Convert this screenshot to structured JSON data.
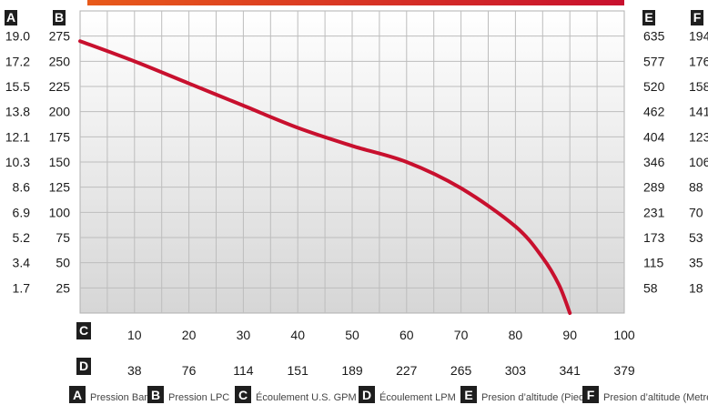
{
  "chart_data": {
    "type": "line",
    "series": [
      {
        "points": [
          [
            0,
            270
          ],
          [
            10,
            250
          ],
          [
            20,
            228
          ],
          [
            30,
            206
          ],
          [
            40,
            184
          ],
          [
            50,
            166
          ],
          [
            60,
            150
          ],
          [
            70,
            124
          ],
          [
            80,
            86
          ],
          [
            85,
            55
          ],
          [
            88,
            28
          ],
          [
            90,
            0
          ]
        ]
      }
    ],
    "xlim": [
      0,
      100
    ],
    "ylim": [
      0,
      300
    ],
    "grid": true,
    "axis_markers": {
      "A": "A",
      "B": "B",
      "C": "C",
      "D": "D",
      "E": "E",
      "F": "F"
    },
    "axis_A_ticks": [
      "19.0",
      "17.2",
      "15.5",
      "13.8",
      "12.1",
      "10.3",
      "8.6",
      "6.9",
      "5.2",
      "3.4",
      "1.7"
    ],
    "axis_B_ticks": [
      "275",
      "250",
      "225",
      "200",
      "175",
      "150",
      "125",
      "100",
      "75",
      "50",
      "25"
    ],
    "axis_E_ticks": [
      "635",
      "577",
      "520",
      "462",
      "404",
      "346",
      "289",
      "231",
      "173",
      "115",
      "58"
    ],
    "axis_F_ticks": [
      "194",
      "176",
      "158",
      "141",
      "123",
      "106",
      "88",
      "70",
      "53",
      "35",
      "18"
    ],
    "axis_C_ticks": [
      "10",
      "20",
      "30",
      "40",
      "50",
      "60",
      "70",
      "80",
      "90",
      "100"
    ],
    "axis_D_ticks": [
      "38",
      "76",
      "114",
      "151",
      "189",
      "227",
      "265",
      "303",
      "341",
      "379"
    ],
    "legend": [
      {
        "letter": "A",
        "label": "Pression Bar"
      },
      {
        "letter": "B",
        "label": "Pression LPC"
      },
      {
        "letter": "C",
        "label": "Écoulement U.S. GPM"
      },
      {
        "letter": "D",
        "label": "Écoulement LPM"
      },
      {
        "letter": "E",
        "label": "Presion d’altitude (Pied)"
      },
      {
        "letter": "F",
        "label": "Presion d’altitude (Metre)"
      }
    ],
    "colors": {
      "curve": "#c8102e",
      "marker_box": "#1e1e1e",
      "top_bar": "#d6281c"
    }
  }
}
